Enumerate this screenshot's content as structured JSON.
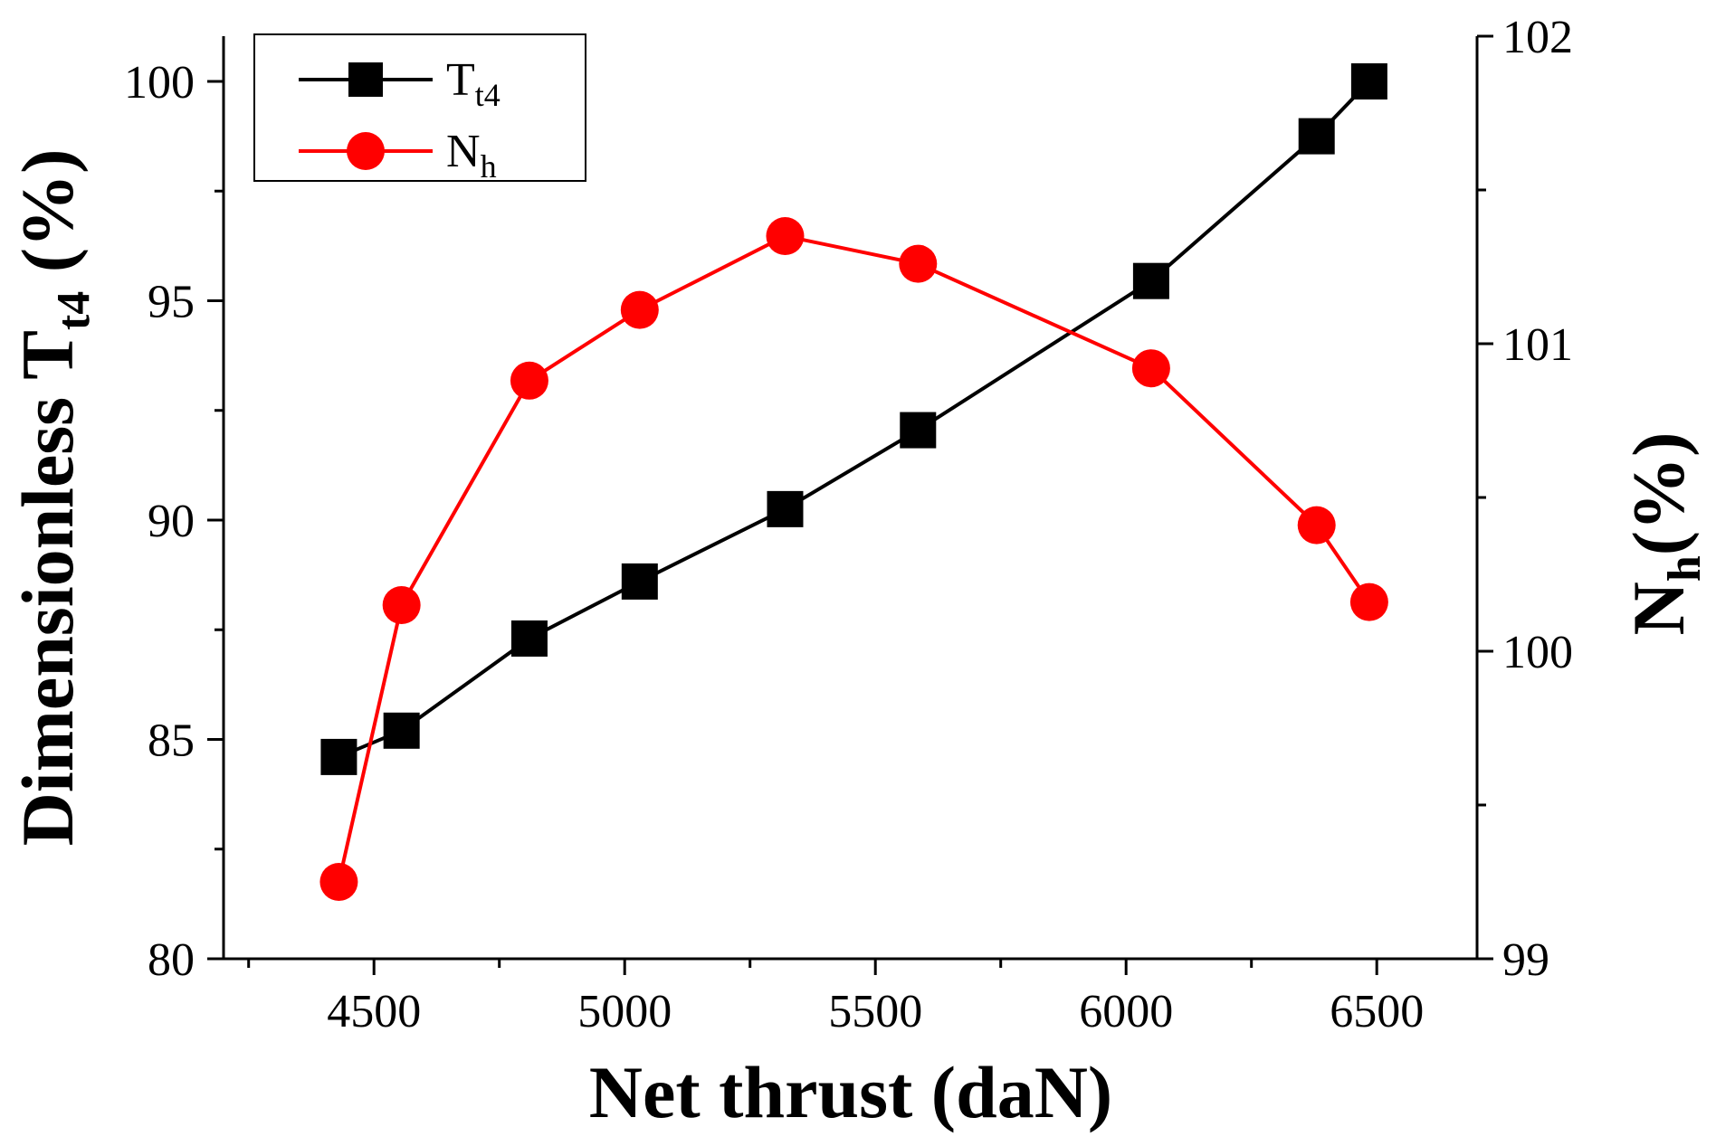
{
  "chart_data": {
    "type": "line",
    "title": "",
    "xlabel": "Net thrust (daN)",
    "ylabel_left": {
      "main": "Dimensionless T",
      "sub": "t4",
      "suffix": " (%)"
    },
    "ylabel_right": {
      "main": "N",
      "sub": "h",
      "suffix": "(%)"
    },
    "xlim": [
      4200,
      6700
    ],
    "xticks": [
      4500,
      5000,
      5500,
      6000,
      6500
    ],
    "xtick_labels": [
      "4500",
      "5000",
      "5500",
      "6000",
      "6500"
    ],
    "ylim_left": [
      80,
      101
    ],
    "yticks_left": [
      80,
      85,
      90,
      95,
      100
    ],
    "ytick_labels_left": [
      "80",
      "85",
      "90",
      "95",
      "100"
    ],
    "ylim_right": [
      99,
      102
    ],
    "yticks_right": [
      99,
      100,
      101,
      102
    ],
    "ytick_labels_right": [
      "99",
      "100",
      "101",
      "102"
    ],
    "grid": false,
    "legend_position": "top-left",
    "series": [
      {
        "name": "Tt4",
        "label_main": "T",
        "label_sub": "t4",
        "axis": "left",
        "color": "#000000",
        "marker": "square",
        "x": [
          4430,
          4555,
          4810,
          5030,
          5320,
          5585,
          6050,
          6380,
          6485
        ],
        "values": [
          84.6,
          85.2,
          87.3,
          88.6,
          90.25,
          92.05,
          95.45,
          98.75,
          100.0
        ]
      },
      {
        "name": "Nh",
        "label_main": "N",
        "label_sub": "h",
        "axis": "right",
        "color": "#ff0000",
        "marker": "circle",
        "x": [
          4430,
          4555,
          4810,
          5030,
          5320,
          5585,
          6050,
          6380,
          6485
        ],
        "values": [
          99.25,
          100.15,
          100.88,
          101.11,
          101.35,
          101.26,
          100.92,
          100.41,
          100.16
        ]
      }
    ]
  }
}
